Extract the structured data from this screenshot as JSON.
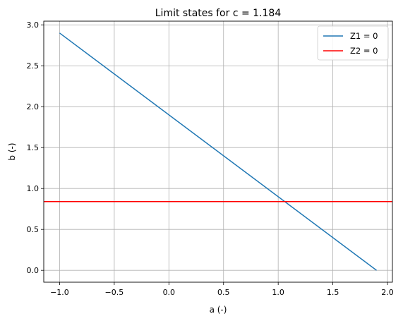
{
  "chart_data": {
    "type": "line",
    "title": "Limit states for c = 1.184",
    "xlabel": "a (-)",
    "ylabel": "b (-)",
    "xlim": [
      -1.145,
      2.045
    ],
    "ylim": [
      -0.145,
      3.045
    ],
    "xticks": [
      -1.0,
      -0.5,
      0.0,
      0.5,
      1.0,
      1.5,
      2.0
    ],
    "xtick_labels": [
      "−1.0",
      "−0.5",
      "0.0",
      "0.5",
      "1.0",
      "1.5",
      "2.0"
    ],
    "yticks": [
      0.0,
      0.5,
      1.0,
      1.5,
      2.0,
      2.5,
      3.0
    ],
    "ytick_labels": [
      "0.0",
      "0.5",
      "1.0",
      "1.5",
      "2.0",
      "2.5",
      "3.0"
    ],
    "grid": true,
    "legend_position": "top-right",
    "series": [
      {
        "name": "Z1 = 0",
        "color": "#1f77b4",
        "x": [
          -1.0,
          1.9
        ],
        "y": [
          2.9,
          0.0
        ]
      },
      {
        "name": "Z2 = 0",
        "color": "#ff0000",
        "kind": "horizontal-line",
        "y": 0.84
      }
    ]
  }
}
